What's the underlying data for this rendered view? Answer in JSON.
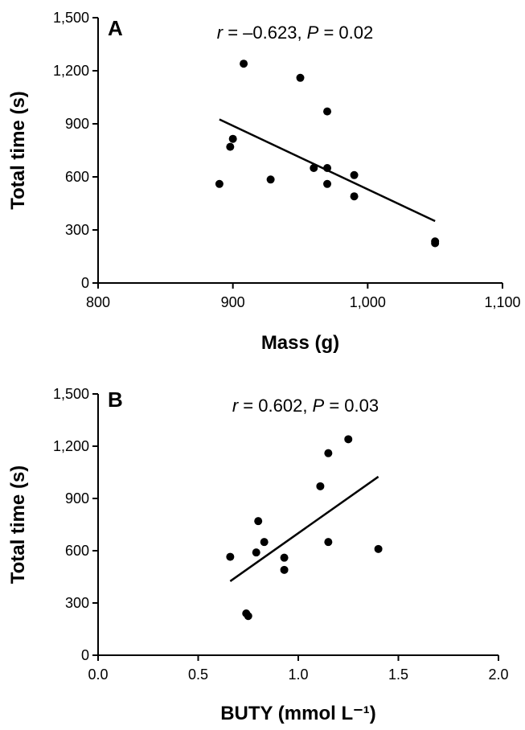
{
  "chart_data": [
    {
      "type": "scatter",
      "panel_label": "A",
      "annotation": {
        "r_symbol": "r",
        "r_value": " = –0.623, ",
        "p_symbol": "P",
        "p_value": " = 0.02"
      },
      "xlabel": "Mass (g)",
      "ylabel": "Total time (s)",
      "xlim": [
        800,
        1100
      ],
      "ylim": [
        0,
        1500
      ],
      "xticks": [
        800,
        900,
        1000,
        1100
      ],
      "xtick_labels": [
        "800",
        "900",
        "1,000",
        "1,100"
      ],
      "yticks": [
        0,
        300,
        600,
        900,
        1200,
        1500
      ],
      "ytick_labels": [
        "0",
        "300",
        "600",
        "900",
        "1,200",
        "1,500"
      ],
      "grid": false,
      "points": [
        {
          "x": 890,
          "y": 560
        },
        {
          "x": 898,
          "y": 770
        },
        {
          "x": 900,
          "y": 815
        },
        {
          "x": 908,
          "y": 1240
        },
        {
          "x": 928,
          "y": 585
        },
        {
          "x": 950,
          "y": 1160
        },
        {
          "x": 960,
          "y": 650
        },
        {
          "x": 970,
          "y": 970
        },
        {
          "x": 970,
          "y": 650
        },
        {
          "x": 970,
          "y": 560
        },
        {
          "x": 990,
          "y": 610
        },
        {
          "x": 990,
          "y": 490
        },
        {
          "x": 1050,
          "y": 235
        },
        {
          "x": 1050,
          "y": 225
        }
      ],
      "regression_line": {
        "x1": 890,
        "y1": 925,
        "x2": 1050,
        "y2": 350
      }
    },
    {
      "type": "scatter",
      "panel_label": "B",
      "annotation": {
        "r_symbol": "r",
        "r_value": " = 0.602, ",
        "p_symbol": "P",
        "p_value": " = 0.03"
      },
      "xlabel": "BUTY (mmol L⁻¹)",
      "ylabel": "Total time (s)",
      "xlim": [
        0,
        2
      ],
      "ylim": [
        0,
        1500
      ],
      "xticks": [
        0,
        0.5,
        1,
        1.5,
        2
      ],
      "xtick_labels": [
        "0.0",
        "0.5",
        "1.0",
        "1.5",
        "2.0"
      ],
      "yticks": [
        0,
        300,
        600,
        900,
        1200,
        1500
      ],
      "ytick_labels": [
        "0",
        "300",
        "600",
        "900",
        "1,200",
        "1,500"
      ],
      "grid": false,
      "points": [
        {
          "x": 0.66,
          "y": 565
        },
        {
          "x": 0.74,
          "y": 240
        },
        {
          "x": 0.75,
          "y": 225
        },
        {
          "x": 0.79,
          "y": 590
        },
        {
          "x": 0.8,
          "y": 770
        },
        {
          "x": 0.83,
          "y": 650
        },
        {
          "x": 0.93,
          "y": 560
        },
        {
          "x": 0.93,
          "y": 490
        },
        {
          "x": 1.11,
          "y": 970
        },
        {
          "x": 1.15,
          "y": 1160
        },
        {
          "x": 1.15,
          "y": 650
        },
        {
          "x": 1.25,
          "y": 1240
        },
        {
          "x": 1.4,
          "y": 610
        }
      ],
      "regression_line": {
        "x1": 0.66,
        "y1": 425,
        "x2": 1.4,
        "y2": 1025
      }
    }
  ]
}
